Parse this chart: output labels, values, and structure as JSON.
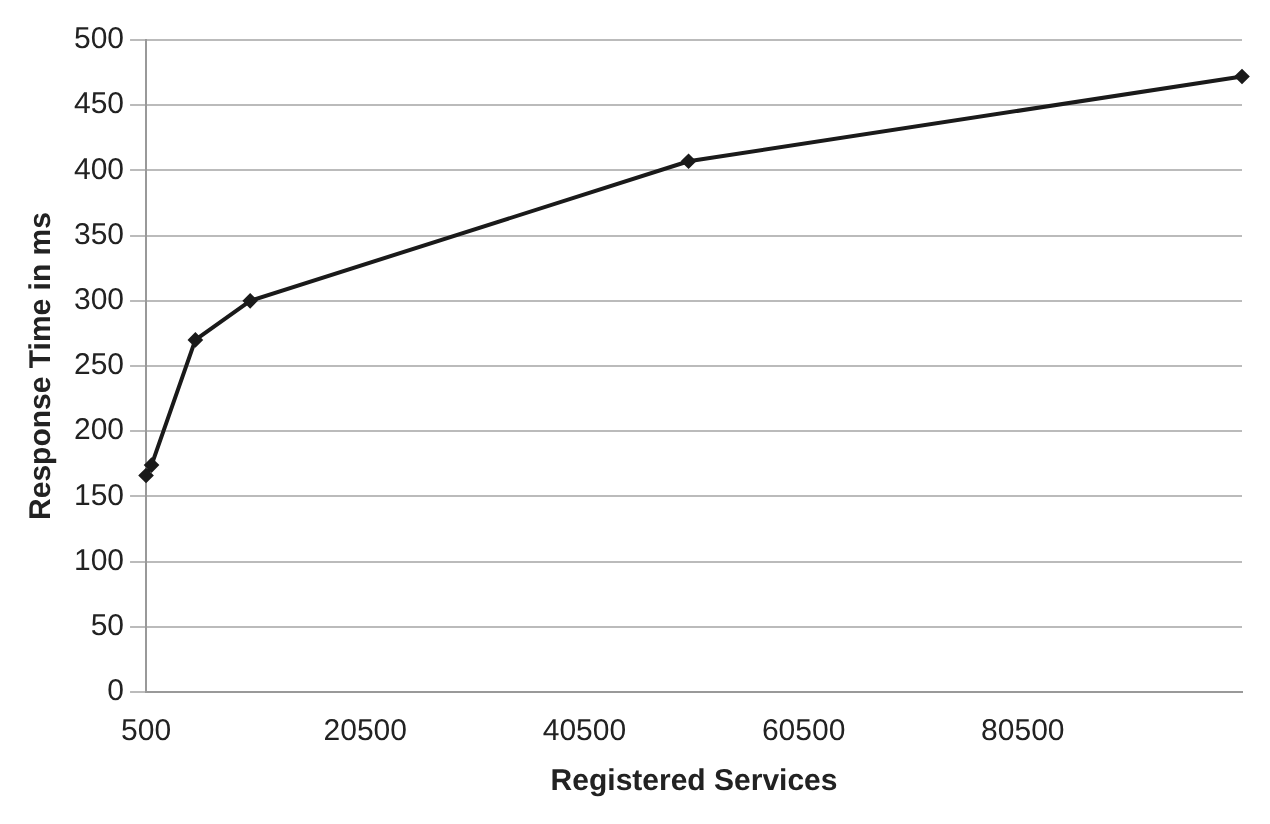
{
  "chart_data": {
    "type": "line",
    "xlabel": "Registered Services",
    "ylabel": "Response Time in ms",
    "x": [
      500,
      1000,
      5000,
      10000,
      50000,
      100500
    ],
    "series": [
      {
        "color": "#1a1a1a",
        "values": [
          166,
          174,
          270,
          300,
          407,
          472
        ]
      }
    ],
    "xlim": [
      500,
      100500
    ],
    "xticks": [
      500,
      20500,
      40500,
      60500,
      80500
    ],
    "ylim": [
      0,
      500
    ],
    "yticks": [
      0,
      50,
      100,
      150,
      200,
      250,
      300,
      350,
      400,
      450,
      500
    ],
    "grid": "y",
    "legend": false,
    "marker": "diamond",
    "line_style": "solid"
  }
}
